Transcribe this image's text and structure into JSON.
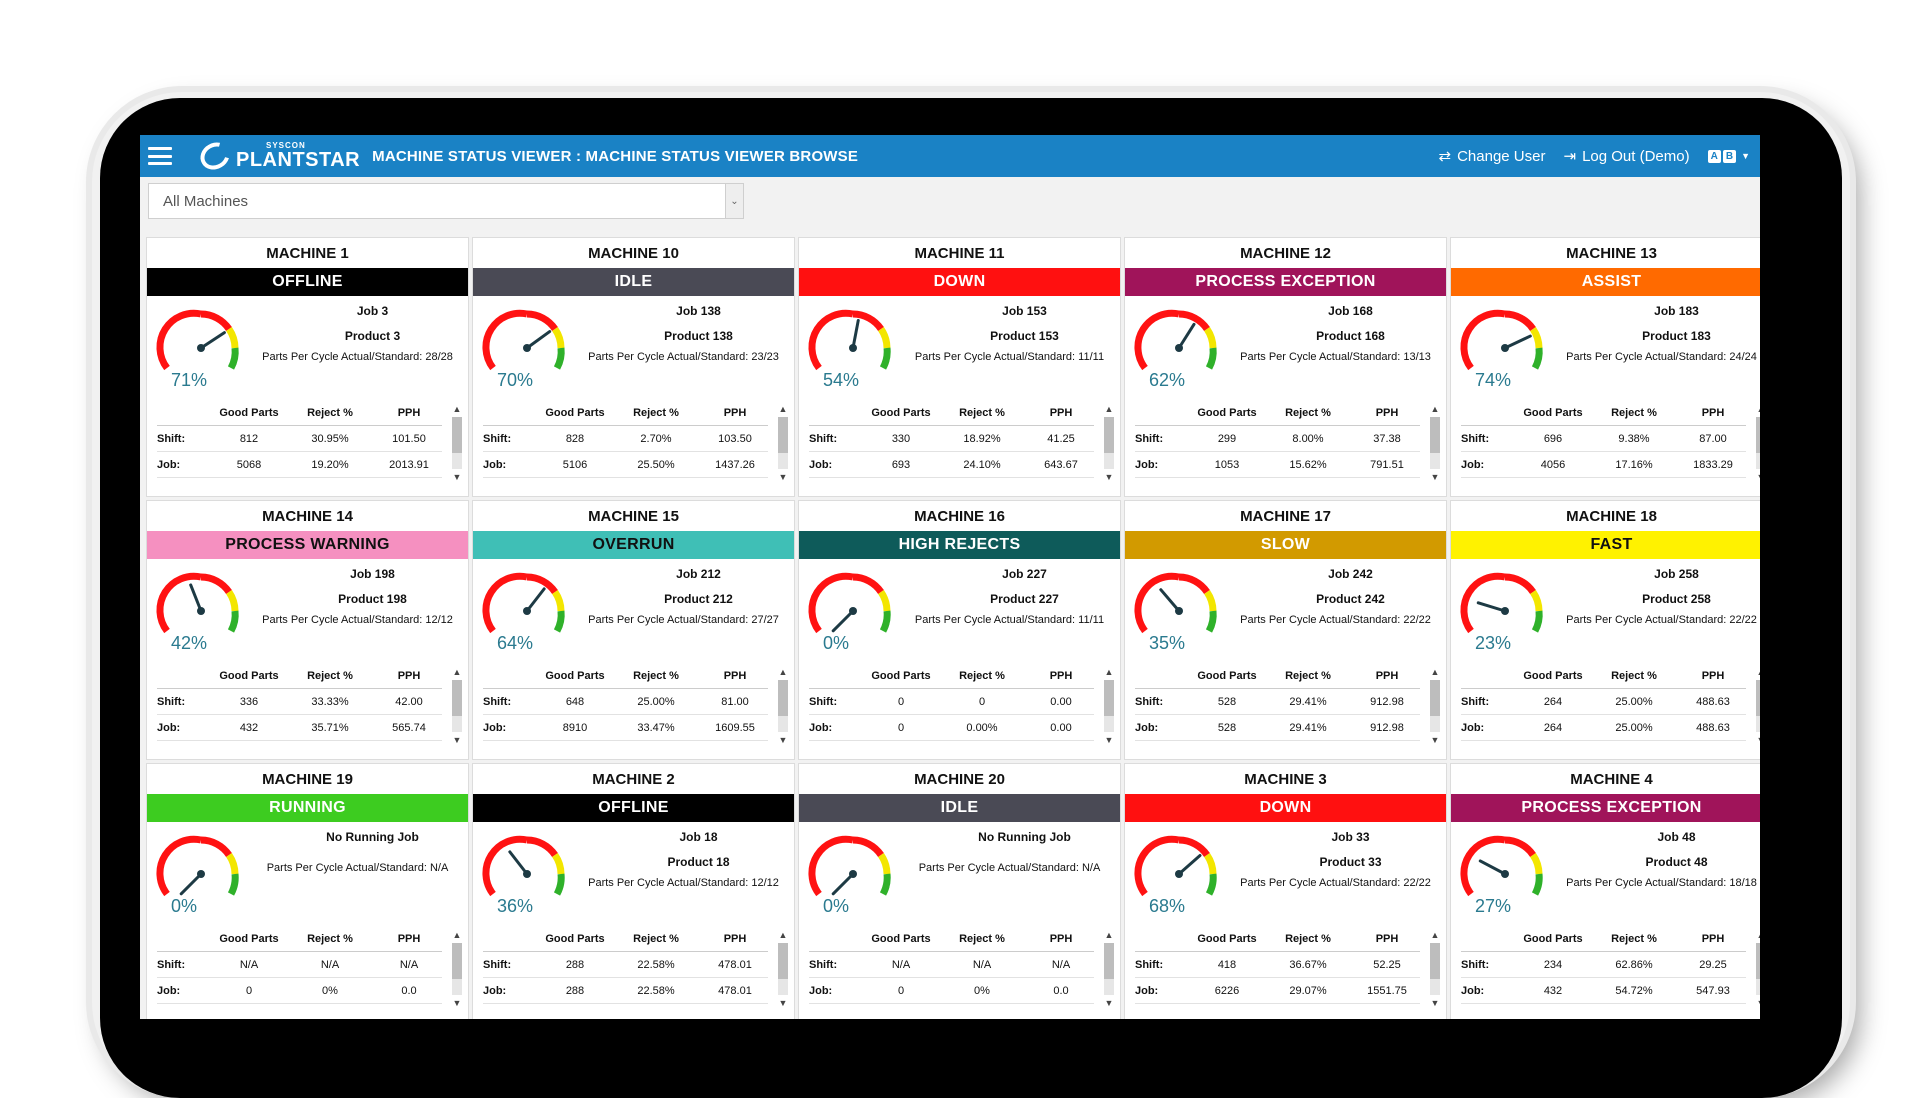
{
  "header": {
    "logo_small": "SYSCON",
    "logo_big": "PLANTSTAR",
    "title": "MACHINE STATUS VIEWER : MACHINE STATUS VIEWER BROWSE",
    "change_user": "Change User",
    "logout": "Log Out (Demo)",
    "lang_a": "A",
    "lang_b": "B"
  },
  "filter": {
    "value": "All Machines"
  },
  "colors": {
    "offline": "#000000",
    "idle": "#4a4a55",
    "down": "#ff1010",
    "process_exception": "#a0145a",
    "assist": "#ff6a00",
    "process_warning": "#f590c0",
    "overrun": "#3fbfb6",
    "high_rejects": "#0e5b5a",
    "slow": "#d29a00",
    "fast": "#fff200",
    "running": "#3dcc20"
  },
  "labels": {
    "good_parts": "Good Parts",
    "reject": "Reject %",
    "pph": "PPH",
    "shift": "Shift:",
    "job": "Job:"
  },
  "machines": [
    {
      "name": "MACHINE 1",
      "status": "OFFLINE",
      "status_color": "#000000",
      "status_text": "#ffffff",
      "percent_value": 71,
      "percent": "71%",
      "job": "Job 3",
      "product": "Product 3",
      "ppc": "Parts Per Cycle Actual/Standard: 28/28",
      "shift": [
        "812",
        "30.95%",
        "101.50"
      ],
      "jobrow": [
        "5068",
        "19.20%",
        "2013.91"
      ]
    },
    {
      "name": "MACHINE 10",
      "status": "IDLE",
      "status_color": "#4a4a55",
      "status_text": "#ffffff",
      "percent_value": 70,
      "percent": "70%",
      "job": "Job 138",
      "product": "Product 138",
      "ppc": "Parts Per Cycle Actual/Standard: 23/23",
      "shift": [
        "828",
        "2.70%",
        "103.50"
      ],
      "jobrow": [
        "5106",
        "25.50%",
        "1437.26"
      ]
    },
    {
      "name": "MACHINE 11",
      "status": "DOWN",
      "status_color": "#ff1010",
      "status_text": "#ffffff",
      "percent_value": 54,
      "percent": "54%",
      "job": "Job 153",
      "product": "Product 153",
      "ppc": "Parts Per Cycle Actual/Standard: 11/11",
      "shift": [
        "330",
        "18.92%",
        "41.25"
      ],
      "jobrow": [
        "693",
        "24.10%",
        "643.67"
      ]
    },
    {
      "name": "MACHINE 12",
      "status": "PROCESS EXCEPTION",
      "status_color": "#a0145a",
      "status_text": "#ffffff",
      "percent_value": 62,
      "percent": "62%",
      "job": "Job 168",
      "product": "Product 168",
      "ppc": "Parts Per Cycle Actual/Standard: 13/13",
      "shift": [
        "299",
        "8.00%",
        "37.38"
      ],
      "jobrow": [
        "1053",
        "15.62%",
        "791.51"
      ]
    },
    {
      "name": "MACHINE 13",
      "status": "ASSIST",
      "status_color": "#ff6a00",
      "status_text": "#ffffff",
      "percent_value": 74,
      "percent": "74%",
      "job": "Job 183",
      "product": "Product 183",
      "ppc": "Parts Per Cycle Actual/Standard: 24/24",
      "shift": [
        "696",
        "9.38%",
        "87.00"
      ],
      "jobrow": [
        "4056",
        "17.16%",
        "1833.29"
      ]
    },
    {
      "name": "MACHINE 14",
      "status": "PROCESS WARNING",
      "status_color": "#f590c0",
      "status_text": "#111111",
      "percent_value": 42,
      "percent": "42%",
      "job": "Job 198",
      "product": "Product 198",
      "ppc": "Parts Per Cycle Actual/Standard: 12/12",
      "shift": [
        "336",
        "33.33%",
        "42.00"
      ],
      "jobrow": [
        "432",
        "35.71%",
        "565.74"
      ]
    },
    {
      "name": "MACHINE 15",
      "status": "OVERRUN",
      "status_color": "#3fbfb6",
      "status_text": "#111111",
      "percent_value": 64,
      "percent": "64%",
      "job": "Job 212",
      "product": "Product 212",
      "ppc": "Parts Per Cycle Actual/Standard: 27/27",
      "shift": [
        "648",
        "25.00%",
        "81.00"
      ],
      "jobrow": [
        "8910",
        "33.47%",
        "1609.55"
      ]
    },
    {
      "name": "MACHINE 16",
      "status": "HIGH REJECTS",
      "status_color": "#0e5b5a",
      "status_text": "#ffffff",
      "percent_value": 0,
      "percent": "0%",
      "job": "Job 227",
      "product": "Product 227",
      "ppc": "Parts Per Cycle Actual/Standard: 11/11",
      "shift": [
        "0",
        "0",
        "0.00"
      ],
      "jobrow": [
        "0",
        "0.00%",
        "0.00"
      ]
    },
    {
      "name": "MACHINE 17",
      "status": "SLOW",
      "status_color": "#d29a00",
      "status_text": "#ffffff",
      "percent_value": 35,
      "percent": "35%",
      "job": "Job 242",
      "product": "Product 242",
      "ppc": "Parts Per Cycle Actual/Standard: 22/22",
      "shift": [
        "528",
        "29.41%",
        "912.98"
      ],
      "jobrow": [
        "528",
        "29.41%",
        "912.98"
      ]
    },
    {
      "name": "MACHINE 18",
      "status": "FAST",
      "status_color": "#fff200",
      "status_text": "#111111",
      "percent_value": 23,
      "percent": "23%",
      "job": "Job 258",
      "product": "Product 258",
      "ppc": "Parts Per Cycle Actual/Standard: 22/22",
      "shift": [
        "264",
        "25.00%",
        "488.63"
      ],
      "jobrow": [
        "264",
        "25.00%",
        "488.63"
      ]
    },
    {
      "name": "MACHINE 19",
      "status": "RUNNING",
      "status_color": "#3dcc20",
      "status_text": "#ffffff",
      "percent_value": 0,
      "percent": "0%",
      "job": "No Running Job",
      "product": "",
      "ppc": "Parts Per Cycle Actual/Standard: N/A",
      "shift": [
        "N/A",
        "N/A",
        "N/A"
      ],
      "jobrow": [
        "0",
        "0%",
        "0.0"
      ]
    },
    {
      "name": "MACHINE 2",
      "status": "OFFLINE",
      "status_color": "#000000",
      "status_text": "#ffffff",
      "percent_value": 36,
      "percent": "36%",
      "job": "Job 18",
      "product": "Product 18",
      "ppc": "Parts Per Cycle Actual/Standard: 12/12",
      "shift": [
        "288",
        "22.58%",
        "478.01"
      ],
      "jobrow": [
        "288",
        "22.58%",
        "478.01"
      ]
    },
    {
      "name": "MACHINE 20",
      "status": "IDLE",
      "status_color": "#4a4a55",
      "status_text": "#ffffff",
      "percent_value": 0,
      "percent": "0%",
      "job": "No Running Job",
      "product": "",
      "ppc": "Parts Per Cycle Actual/Standard: N/A",
      "shift": [
        "N/A",
        "N/A",
        "N/A"
      ],
      "jobrow": [
        "0",
        "0%",
        "0.0"
      ]
    },
    {
      "name": "MACHINE 3",
      "status": "DOWN",
      "status_color": "#ff1010",
      "status_text": "#ffffff",
      "percent_value": 68,
      "percent": "68%",
      "job": "Job 33",
      "product": "Product 33",
      "ppc": "Parts Per Cycle Actual/Standard: 22/22",
      "shift": [
        "418",
        "36.67%",
        "52.25"
      ],
      "jobrow": [
        "6226",
        "29.07%",
        "1551.75"
      ]
    },
    {
      "name": "MACHINE 4",
      "status": "PROCESS EXCEPTION",
      "status_color": "#a0145a",
      "status_text": "#ffffff",
      "percent_value": 27,
      "percent": "27%",
      "job": "Job 48",
      "product": "Product 48",
      "ppc": "Parts Per Cycle Actual/Standard: 18/18",
      "shift": [
        "234",
        "62.86%",
        "29.25"
      ],
      "jobrow": [
        "432",
        "54.72%",
        "547.93"
      ]
    }
  ]
}
